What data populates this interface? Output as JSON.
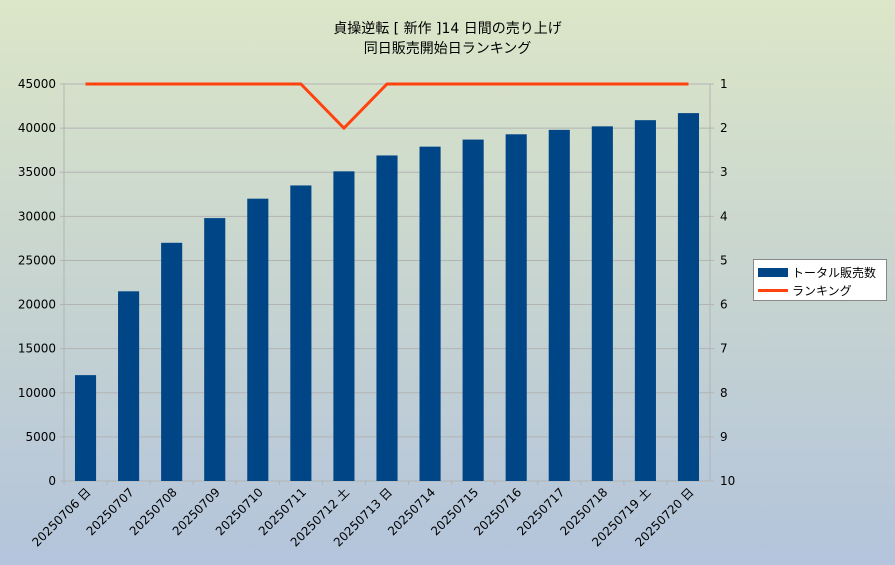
{
  "title": {
    "line1": "貞操逆転 [ 新作 ]14 日間の売り上げ",
    "line2": "同日販売開始日ランキング"
  },
  "legend": {
    "bar_label": "トータル販売数",
    "line_label": "ランキング"
  },
  "colors": {
    "bar": "#004586",
    "line": "#ff420e",
    "grid": "#b3b3b3"
  },
  "chart_data": {
    "type": "bar",
    "categories": [
      "20250706 日",
      "20250707",
      "20250708",
      "20250709",
      "20250710",
      "20250711",
      "20250712 土",
      "20250713 日",
      "20250714",
      "20250715",
      "20250716",
      "20250717",
      "20250718",
      "20250719 土",
      "20250720 日"
    ],
    "series": [
      {
        "name": "トータル販売数",
        "type": "bar",
        "axis": "left",
        "values": [
          12000,
          21500,
          27000,
          29800,
          32000,
          33500,
          35100,
          36900,
          37900,
          38700,
          39300,
          39800,
          40200,
          40900,
          41700
        ]
      },
      {
        "name": "ランキング",
        "type": "line",
        "axis": "right",
        "values": [
          1,
          1,
          1,
          1,
          1,
          1,
          2,
          1,
          1,
          1,
          1,
          1,
          1,
          1,
          1
        ]
      }
    ],
    "ylim": [
      0,
      45000
    ],
    "yticks": [
      0,
      5000,
      10000,
      15000,
      20000,
      25000,
      30000,
      35000,
      40000,
      45000
    ],
    "y2lim": [
      1,
      10
    ],
    "y2_reversed": true,
    "y2ticks": [
      1,
      2,
      3,
      4,
      5,
      6,
      7,
      8,
      9,
      10
    ],
    "grid": true,
    "legend_position": "right"
  }
}
